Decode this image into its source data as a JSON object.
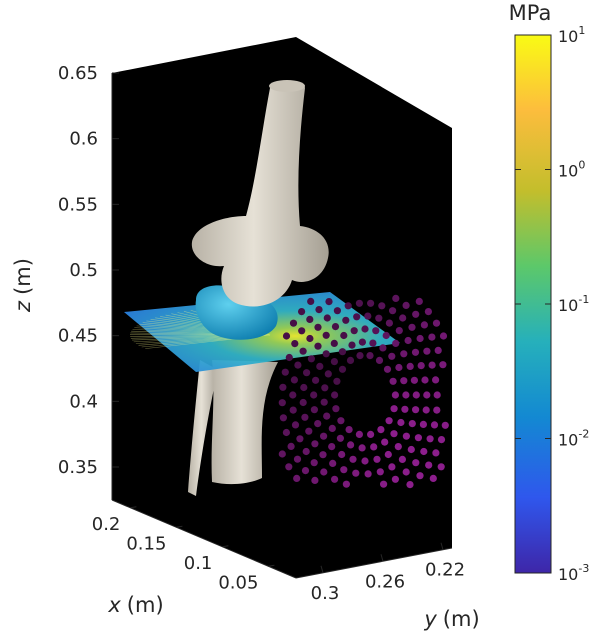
{
  "chart_data": {
    "type": "3d-render",
    "z_axis": {
      "label_var": "z",
      "label_unit": "(m)",
      "ticks": [
        0.35,
        0.4,
        0.45,
        0.5,
        0.55,
        0.6,
        0.65
      ],
      "tick_labels": [
        "0.35",
        "0.4",
        "0.45",
        "0.5",
        "0.55",
        "0.6",
        "0.65"
      ]
    },
    "x_axis": {
      "label_var": "x",
      "label_unit": "(m)",
      "ticks": [
        0.05,
        0.1,
        0.15,
        0.2
      ],
      "tick_labels": [
        "0.05",
        "0.1",
        "0.15",
        "0.2"
      ]
    },
    "y_axis": {
      "label_var": "y",
      "label_unit": "(m)",
      "ticks": [
        0.3,
        0.26,
        0.22
      ],
      "tick_labels": [
        "0.3",
        "0.26",
        "0.22"
      ]
    },
    "colorbar": {
      "unit": "MPa",
      "scale": "log",
      "exponents": [
        -3,
        -2,
        -1,
        0,
        1
      ],
      "tick_labels": [
        {
          "base": "10",
          "exp": "-3"
        },
        {
          "base": "10",
          "exp": "-2"
        },
        {
          "base": "10",
          "exp": "-1"
        },
        {
          "base": "10",
          "exp": "0"
        },
        {
          "base": "10",
          "exp": "1"
        }
      ],
      "colormap": "parula",
      "colors": [
        "#3e26a8",
        "#2f57ed",
        "#1389d2",
        "#26b0bb",
        "#5cc86a",
        "#c3be2c",
        "#fcbd3d",
        "#f9fb14"
      ]
    },
    "background_color": "#000000",
    "bone_color": "#ddd8cc",
    "cartilage_color": "#1ea0c8",
    "transducer_color": "#8c1f8c"
  }
}
